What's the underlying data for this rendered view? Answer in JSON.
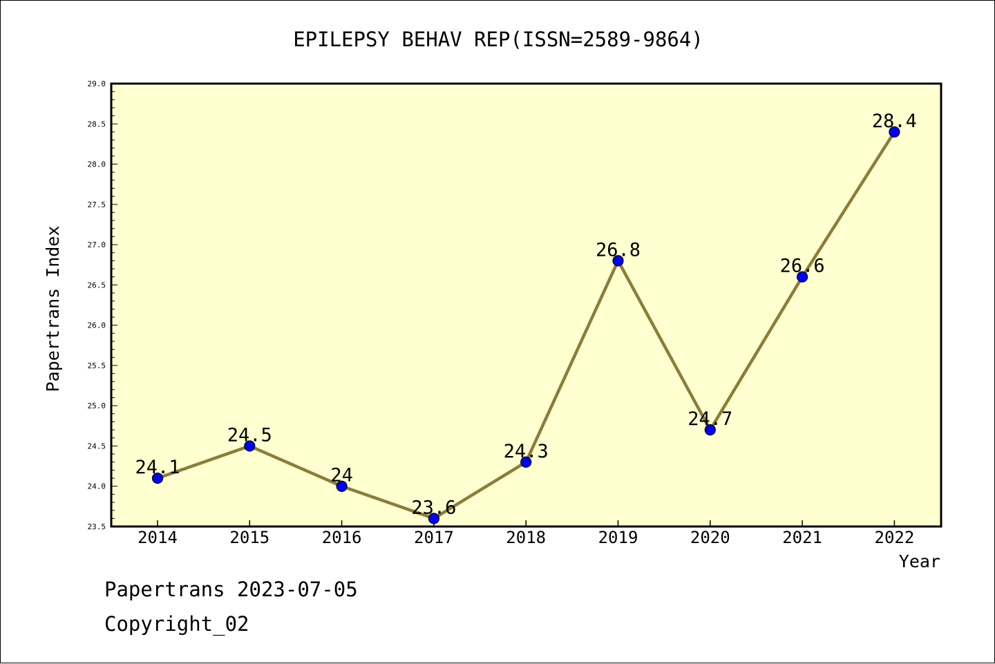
{
  "chart_data": {
    "type": "line",
    "title": "EPILEPSY BEHAV REP(ISSN=2589-9864)",
    "xlabel": "Year",
    "ylabel": "Papertrans Index",
    "categories": [
      "2014",
      "2015",
      "2016",
      "2017",
      "2018",
      "2019",
      "2020",
      "2021",
      "2022"
    ],
    "values": [
      24.1,
      24.5,
      24.0,
      23.6,
      24.3,
      26.8,
      24.7,
      26.6,
      28.4
    ],
    "data_labels": [
      "24.1",
      "24.5",
      "24",
      "23.6",
      "24.3",
      "26.8",
      "24.7",
      "26.6",
      "28.4"
    ],
    "ylim": [
      23.5,
      29.0
    ],
    "yticks": [
      "23.5",
      "24.0",
      "24.5",
      "25.0",
      "25.5",
      "26.0",
      "26.5",
      "27.0",
      "27.5",
      "28.0",
      "28.5",
      "29.0"
    ],
    "grid": false,
    "colors": {
      "plot_background": "#ffffd0",
      "line": "#8b7d3a",
      "marker": "#0000ff",
      "marker_edge": "#000000"
    }
  },
  "footer": {
    "line1": "Papertrans 2023-07-05",
    "line2": "Copyright_02"
  }
}
